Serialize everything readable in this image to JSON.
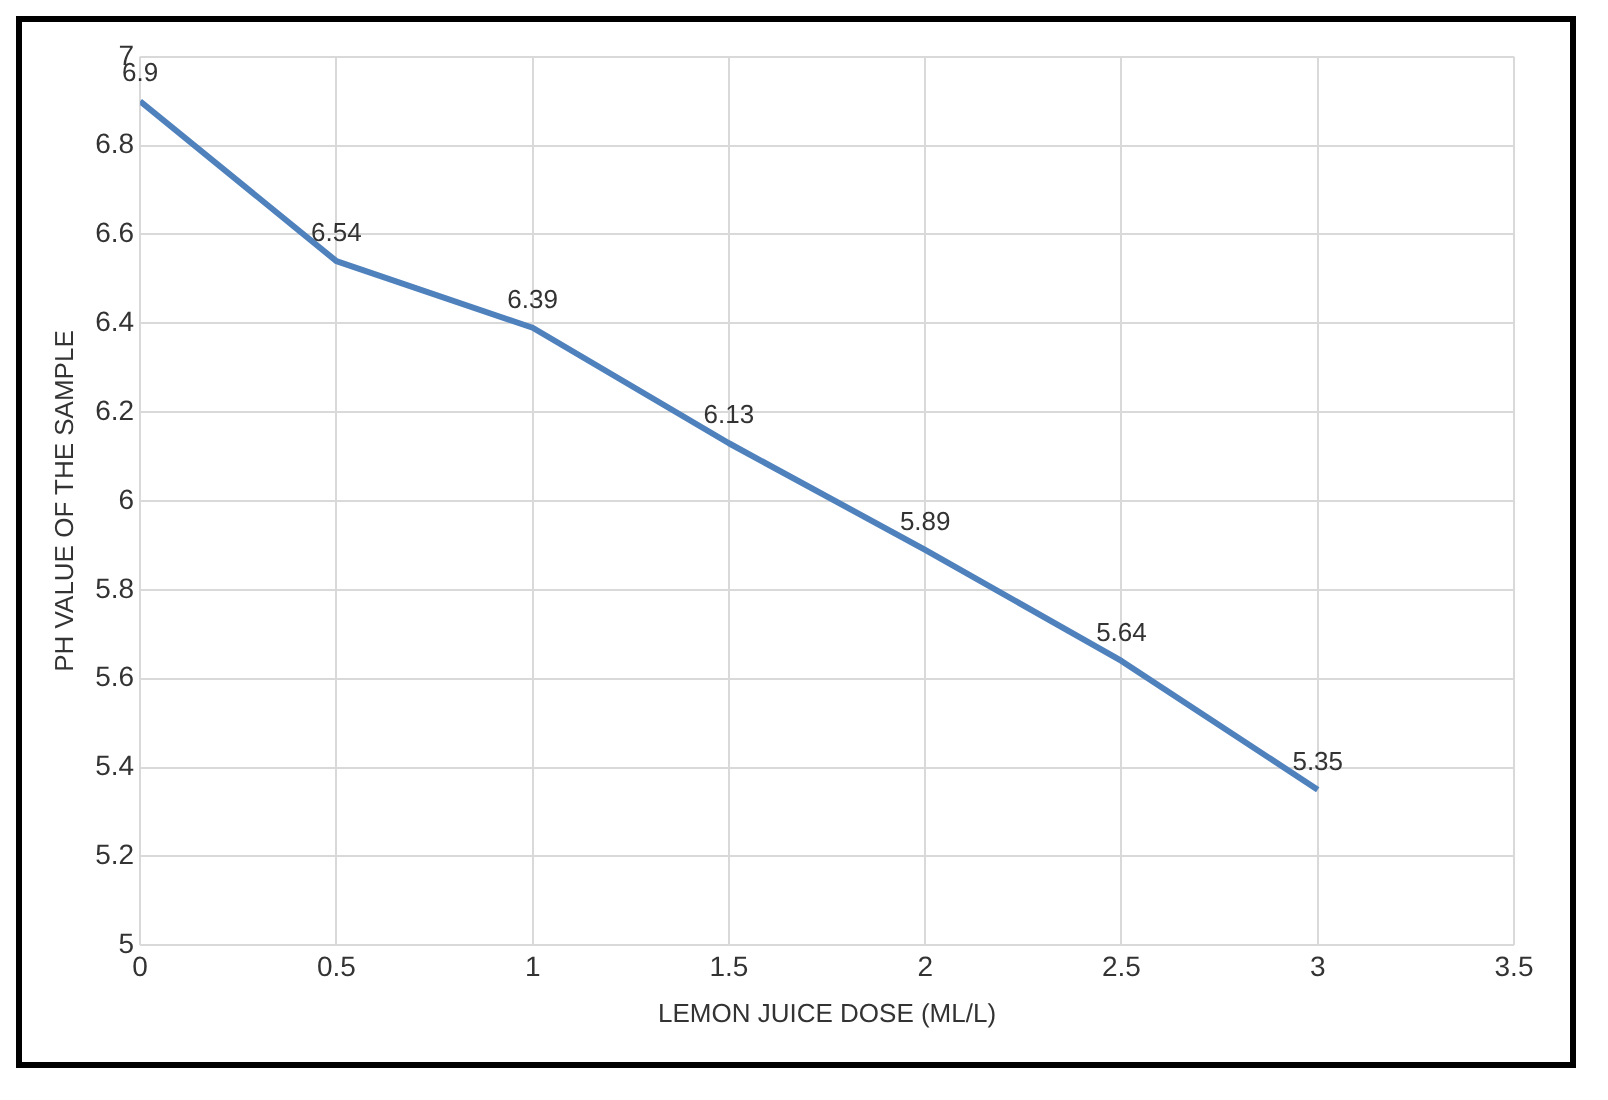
{
  "chart_data": {
    "type": "line",
    "xlabel": "LEMON JUICE DOSE (ML/L)",
    "ylabel": "PH VALUE OF THE SAMPLE",
    "x": [
      0,
      0.5,
      1,
      1.5,
      2,
      2.5,
      3
    ],
    "series": [
      {
        "color": "#4f81bd",
        "values": [
          6.9,
          6.54,
          6.39,
          6.13,
          5.89,
          5.64,
          5.35
        ]
      }
    ],
    "xlim": [
      0,
      3.5
    ],
    "xticks": [
      0,
      0.5,
      1,
      1.5,
      2,
      2.5,
      3,
      3.5
    ],
    "ylim": [
      5,
      7
    ],
    "yticks": [
      5,
      5.2,
      5.4,
      5.6,
      5.8,
      6,
      6.2,
      6.4,
      6.6,
      6.8,
      7
    ],
    "grid": true,
    "legend": false,
    "marker": "none",
    "line_style": "solid",
    "data_labels": true
  }
}
